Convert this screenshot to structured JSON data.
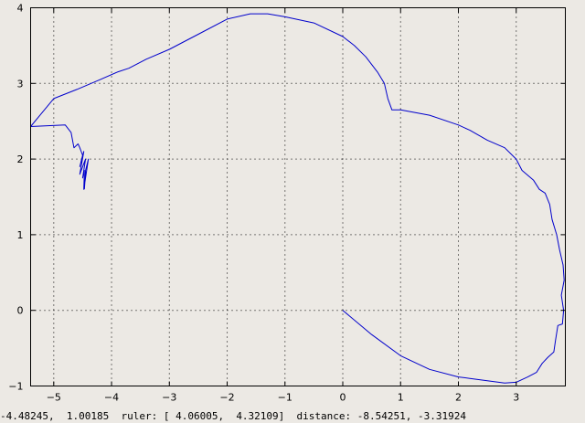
{
  "chart_data": {
    "type": "line",
    "title": "",
    "xlabel": "",
    "ylabel": "",
    "xlim": [
      -5.4,
      3.85
    ],
    "ylim": [
      -1,
      4
    ],
    "grid": true,
    "xticks": [
      -5,
      -4,
      -3,
      -2,
      -1,
      0,
      1,
      2,
      3
    ],
    "yticks": [
      -1,
      0,
      1,
      2,
      3,
      4
    ],
    "xtick_labels": [
      "−5",
      "−4",
      "−3",
      "−2",
      "−1",
      "0",
      "1",
      "2",
      "3"
    ],
    "ytick_labels": [
      "−1",
      "0",
      "1",
      "2",
      "3",
      "4"
    ],
    "series": [
      {
        "color": "#0000cc",
        "x": [
          0,
          0.5,
          1.0,
          1.5,
          2.0,
          2.2,
          2.5,
          2.8,
          3.0,
          3.2,
          3.35,
          3.45,
          3.55,
          3.65,
          3.68,
          3.72,
          3.8,
          3.82,
          3.78,
          3.83,
          3.81,
          3.75,
          3.7,
          3.62,
          3.58,
          3.5,
          3.4,
          3.3,
          3.1,
          3.0,
          2.8,
          2.5,
          2.2,
          2.0,
          1.5,
          1.0,
          0.85,
          0.78,
          0.72,
          0.6,
          0.4,
          0.2,
          0.0,
          -0.5,
          -1.0,
          -1.3,
          -1.6,
          -2.0,
          -2.5,
          -3.0,
          -3.4,
          -3.7,
          -3.9,
          -4.2,
          -4.6,
          -5.0,
          -5.4,
          -5.4,
          -4.8,
          -4.7,
          -4.65,
          -4.58,
          -4.55,
          -4.5,
          -4.55,
          -4.48,
          -4.55,
          -4.45,
          -4.5,
          -4.47,
          -4.48,
          -4.4,
          -4.45,
          -4.46,
          -4.47
        ],
        "y": [
          0,
          -0.32,
          -0.6,
          -0.78,
          -0.88,
          -0.9,
          -0.93,
          -0.96,
          -0.95,
          -0.88,
          -0.82,
          -0.7,
          -0.62,
          -0.55,
          -0.4,
          -0.2,
          -0.18,
          0.0,
          0.2,
          0.4,
          0.6,
          0.8,
          1.0,
          1.2,
          1.4,
          1.55,
          1.6,
          1.72,
          1.85,
          2.0,
          2.15,
          2.25,
          2.38,
          2.45,
          2.58,
          2.65,
          2.65,
          2.8,
          3.0,
          3.15,
          3.35,
          3.5,
          3.62,
          3.8,
          3.88,
          3.92,
          3.92,
          3.85,
          3.65,
          3.45,
          3.32,
          3.2,
          3.15,
          3.05,
          2.92,
          2.8,
          2.43,
          2.43,
          2.45,
          2.35,
          2.15,
          2.2,
          2.15,
          2.05,
          1.9,
          2.1,
          1.8,
          2.0,
          1.75,
          1.85,
          1.6,
          2.0,
          1.85,
          1.7,
          1.6
        ]
      }
    ]
  },
  "status": {
    "cursor": "-4.48245,  1.00185",
    "ruler_label": "ruler:",
    "ruler": "[ 4.06005,  4.32109]",
    "distance_label": "distance:",
    "distance": "-8.54251, -3.31924"
  }
}
